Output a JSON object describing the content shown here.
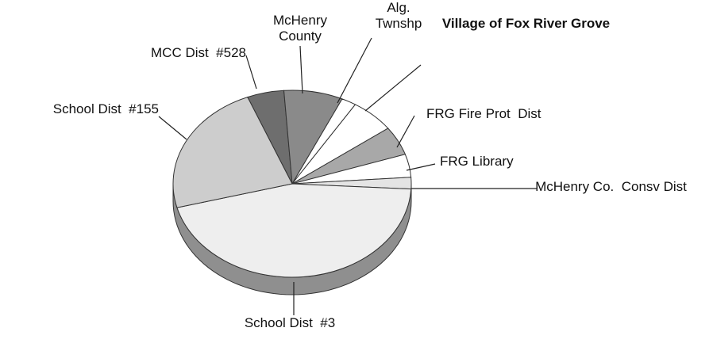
{
  "chart_data": {
    "type": "pie",
    "categories": [
      "MCC Dist  #528",
      "McHenry County",
      "Alg. Twnshp",
      "Village of Fox River Grove",
      "FRG Fire Prot  Dist",
      "FRG Library",
      "McHenry Co.  Consv Dist",
      "School Dist  #3",
      "School Dist  #155"
    ],
    "values": [
      5,
      8,
      2,
      6,
      5,
      4,
      2,
      45,
      23
    ],
    "colors": [
      "#6e6e6e",
      "#8a8a8a",
      "#ffffff",
      "#ffffff",
      "#a8a8a8",
      "#ffffff",
      "#e4e4e4",
      "#eeeeee",
      "#cdcdcd"
    ],
    "bold": [
      false,
      false,
      false,
      true,
      false,
      false,
      false,
      false,
      false
    ]
  }
}
